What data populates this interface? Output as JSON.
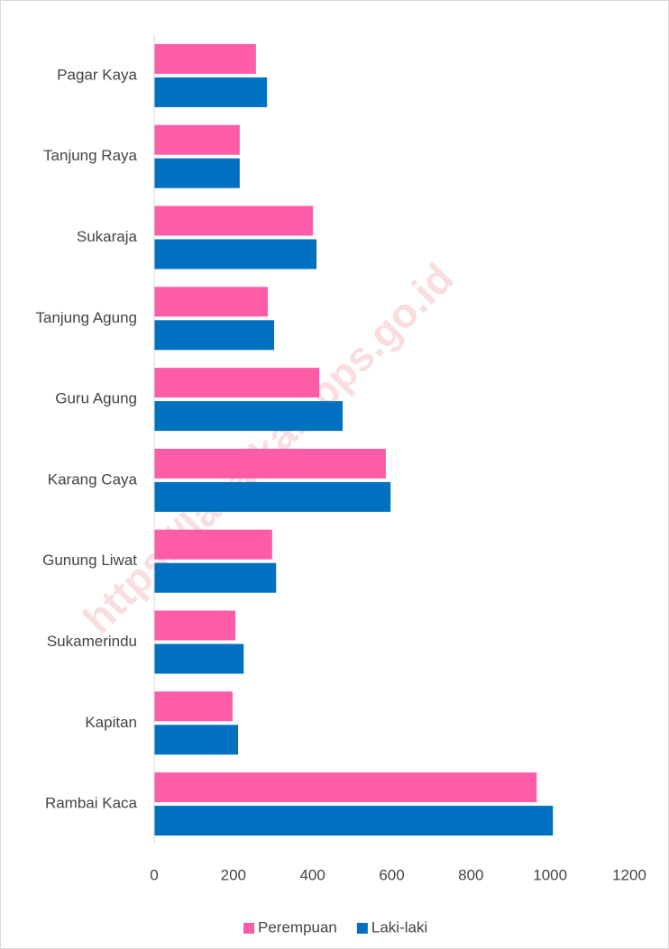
{
  "chart_data": {
    "type": "bar",
    "orientation": "horizontal",
    "categories": [
      "Pagar Kaya",
      "Tanjung Raya",
      "Sukaraja",
      "Tanjung Agung",
      "Guru Agung",
      "Karang Caya",
      "Gunung Liwat",
      "Sukamerindu",
      "Kapitan",
      "Rambai Kaca"
    ],
    "series": [
      {
        "name": "Perempuan",
        "color": "#ff5ca8",
        "values": [
          257,
          216,
          401,
          287,
          417,
          585,
          298,
          205,
          198,
          966
        ]
      },
      {
        "name": "Laki-laki",
        "color": "#0070c0",
        "values": [
          285,
          216,
          410,
          303,
          476,
          597,
          308,
          226,
          212,
          1007
        ]
      }
    ],
    "xlim": [
      0,
      1200
    ],
    "xticks": [
      0,
      200,
      400,
      600,
      800,
      1000,
      1200
    ],
    "legend": "bottom",
    "grid": false,
    "watermark": "https://lahatkab.bps.go.id"
  }
}
